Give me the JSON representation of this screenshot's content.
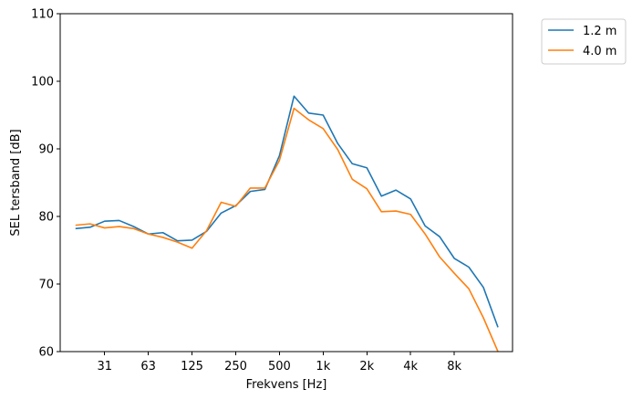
{
  "chart_data": {
    "type": "line",
    "xlabel": "Frekvens [Hz]",
    "ylabel": "SEL tersband [dB]",
    "ylim": [
      60,
      110
    ],
    "yticks": [
      60,
      70,
      80,
      90,
      100,
      110
    ],
    "xticks": [
      {
        "label": "31",
        "band": 4
      },
      {
        "label": "63",
        "band": 7
      },
      {
        "label": "125",
        "band": 10
      },
      {
        "label": "250",
        "band": 13
      },
      {
        "label": "500",
        "band": 16
      },
      {
        "label": "1k",
        "band": 19
      },
      {
        "label": "2k",
        "band": 22
      },
      {
        "label": "4k",
        "band": 25
      },
      {
        "label": "8k",
        "band": 28
      }
    ],
    "grid": false,
    "legend_position": "outside-top-right",
    "x": [
      2,
      3,
      4,
      5,
      6,
      7,
      8,
      9,
      10,
      11,
      12,
      13,
      14,
      15,
      16,
      17,
      18,
      19,
      20,
      21,
      22,
      23,
      24,
      25,
      26,
      27,
      28,
      29,
      30,
      31
    ],
    "series": [
      {
        "name": "1.2 m",
        "color": "#1f77b4",
        "values": [
          78.2,
          78.4,
          79.3,
          79.4,
          78.5,
          77.4,
          77.6,
          76.4,
          76.5,
          77.8,
          80.5,
          81.6,
          83.7,
          84.0,
          89.0,
          97.8,
          95.3,
          95.0,
          90.8,
          87.8,
          87.2,
          83.0,
          83.9,
          82.6,
          78.6,
          77.0,
          73.8,
          72.5,
          69.5,
          63.6
        ]
      },
      {
        "name": "4.0 m",
        "color": "#ff7f0e",
        "values": [
          78.7,
          78.9,
          78.3,
          78.5,
          78.2,
          77.4,
          76.9,
          76.2,
          75.3,
          77.9,
          82.1,
          81.5,
          84.2,
          84.2,
          88.3,
          96.0,
          94.3,
          93.0,
          89.9,
          85.5,
          84.1,
          80.7,
          80.8,
          80.3,
          77.4,
          74.0,
          71.6,
          69.3,
          65.0,
          60.0
        ]
      }
    ]
  }
}
